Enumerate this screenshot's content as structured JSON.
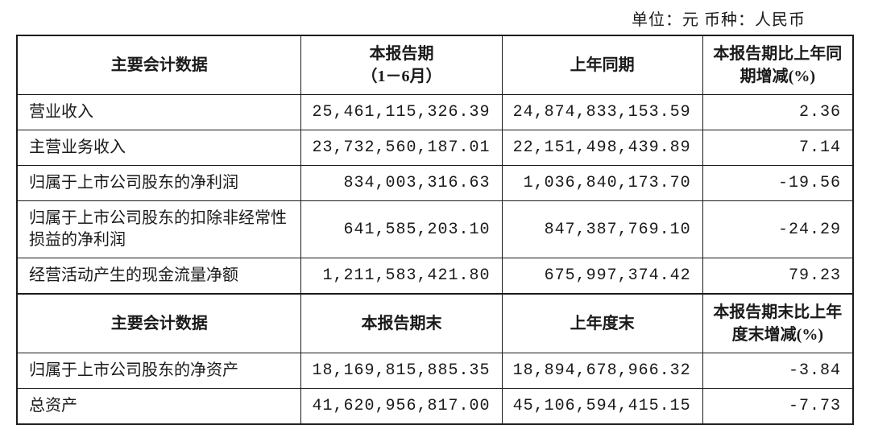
{
  "unit_line": "单位：元  币种：人民币",
  "table": {
    "header1": {
      "c1": "主要会计数据",
      "c2": "本报告期\n（1－6月）",
      "c3": "上年同期",
      "c4": "本报告期比上年同期增减(%)"
    },
    "section1_rows": [
      {
        "label": "营业收入",
        "v1": "25,461,115,326.39",
        "v2": "24,874,833,153.59",
        "pct": "2.36"
      },
      {
        "label": "主营业务收入",
        "v1": "23,732,560,187.01",
        "v2": "22,151,498,439.89",
        "pct": "7.14"
      },
      {
        "label": "归属于上市公司股东的净利润",
        "v1": "834,003,316.63",
        "v2": "1,036,840,173.70",
        "pct": "-19.56"
      },
      {
        "label": "归属于上市公司股东的扣除非经常性损益的净利润",
        "v1": "641,585,203.10",
        "v2": "847,387,769.10",
        "pct": "-24.29"
      },
      {
        "label": "经营活动产生的现金流量净额",
        "v1": "1,211,583,421.80",
        "v2": "675,997,374.42",
        "pct": "79.23"
      }
    ],
    "header2": {
      "c1": "主要会计数据",
      "c2": "本报告期末",
      "c3": "上年度末",
      "c4": "本报告期末比上年度末增减(%)"
    },
    "section2_rows": [
      {
        "label": "归属于上市公司股东的净资产",
        "v1": "18,169,815,885.35",
        "v2": "18,894,678,966.32",
        "pct": "-3.84"
      },
      {
        "label": "总资产",
        "v1": "41,620,956,817.00",
        "v2": "45,106,594,415.15",
        "pct": "-7.73"
      }
    ],
    "styling": {
      "border_color": "#1a1a1a",
      "outer_border_width": 2.5,
      "inner_border_width": 1.5,
      "background_color": "#ffffff",
      "text_color": "#1a1a1a",
      "font_size_pt": 20,
      "font_family": "SimSun",
      "col_widths_pct": [
        34,
        24,
        24,
        18
      ],
      "label_align": "left",
      "number_align": "right",
      "header_align": "center",
      "header_font_weight": "bold"
    }
  }
}
